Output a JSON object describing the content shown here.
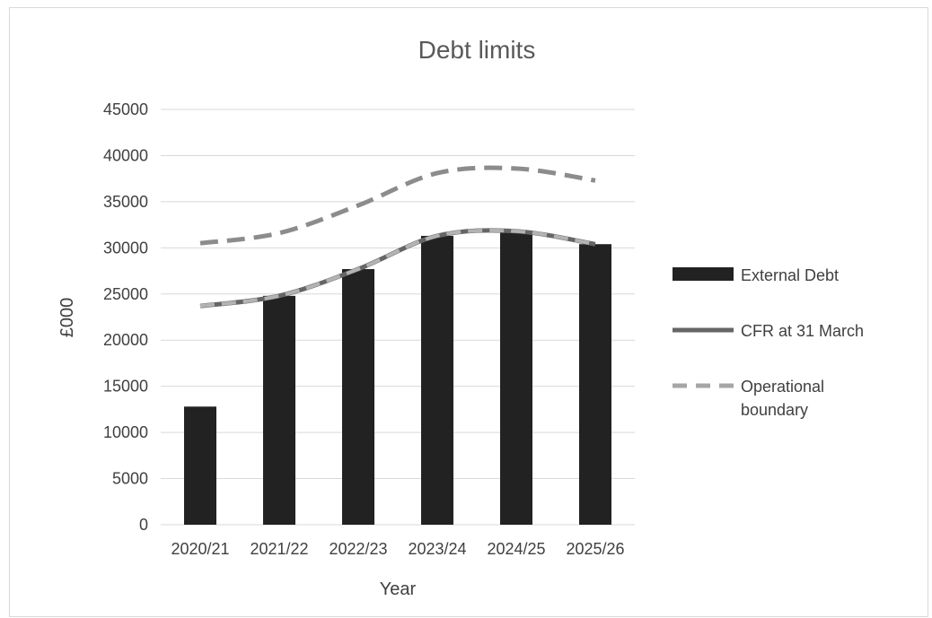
{
  "chart_data": {
    "type": "bar",
    "title": "Debt limits",
    "xlabel": "Year",
    "ylabel": "£000",
    "ylim": [
      0,
      45000
    ],
    "ytick_step": 5000,
    "grid": true,
    "legend_position": "right",
    "categories": [
      "2020/21",
      "2021/22",
      "2022/23",
      "2023/24",
      "2024/25",
      "2025/26"
    ],
    "series": [
      {
        "name": "External Debt",
        "kind": "bar",
        "color": "#222222",
        "values": [
          12800,
          24800,
          27700,
          31300,
          31800,
          30400
        ]
      },
      {
        "name": "CFR at 31 March",
        "kind": "line",
        "color": "#666666",
        "values": [
          23700,
          24800,
          27700,
          31300,
          31800,
          30400
        ]
      },
      {
        "name": "Operational boundary",
        "kind": "dashed-line",
        "color": "#8c8c8c",
        "values": [
          30500,
          31600,
          34600,
          38100,
          38600,
          37300
        ]
      }
    ],
    "legend": [
      {
        "line1": "External Debt",
        "line2": ""
      },
      {
        "line1": "CFR at 31 March",
        "line2": ""
      },
      {
        "line1": "Operational",
        "line2": "boundary"
      }
    ]
  }
}
